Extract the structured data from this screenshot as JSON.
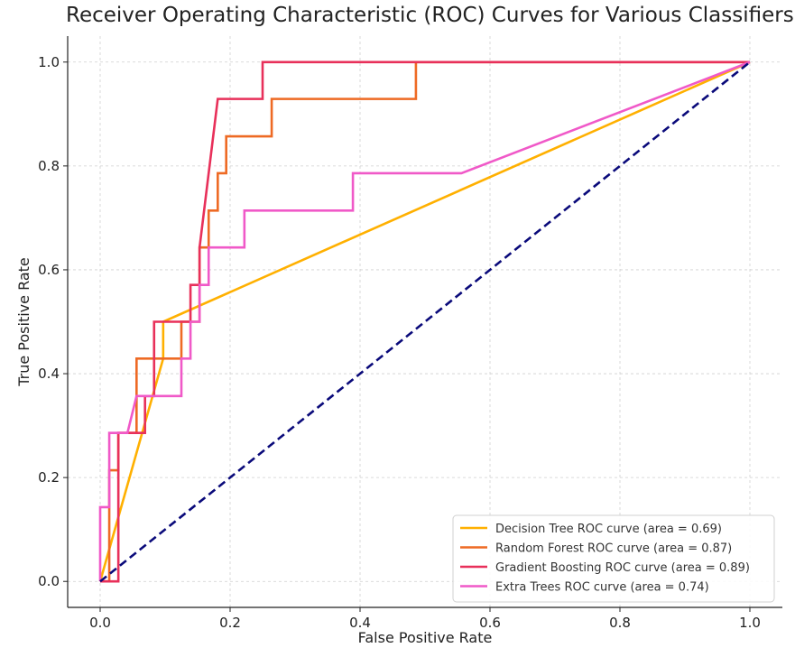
{
  "chart_data": {
    "type": "line",
    "title": "Receiver Operating Characteristic (ROC) Curves for Various Classifiers",
    "xlabel": "False Positive Rate",
    "ylabel": "True Positive Rate",
    "xlim": [
      -0.05,
      1.05
    ],
    "ylim": [
      -0.05,
      1.05
    ],
    "xticks": [
      0.0,
      0.2,
      0.4,
      0.6,
      0.8,
      1.0
    ],
    "yticks": [
      0.0,
      0.2,
      0.4,
      0.6,
      0.8,
      1.0
    ],
    "xtick_labels": [
      "0.0",
      "0.2",
      "0.4",
      "0.6",
      "0.8",
      "1.0"
    ],
    "ytick_labels": [
      "0.0",
      "0.2",
      "0.4",
      "0.6",
      "0.8",
      "1.0"
    ],
    "grid": true,
    "legend_position": "lower-right",
    "series": [
      {
        "name": "Decision Tree ROC curve (area = 0.69)",
        "color": "#FFB000",
        "style": "solid",
        "x": [
          0.0,
          0.097,
          0.097,
          1.0
        ],
        "y": [
          0.0,
          0.429,
          0.5,
          1.0
        ]
      },
      {
        "name": "Random Forest ROC curve (area = 0.87)",
        "color": "#EE6A24",
        "style": "solid",
        "x": [
          0.0,
          0.014,
          0.014,
          0.028,
          0.028,
          0.056,
          0.056,
          0.069,
          0.069,
          0.125,
          0.125,
          0.153,
          0.153,
          0.167,
          0.167,
          0.181,
          0.181,
          0.194,
          0.194,
          0.25,
          0.25,
          0.264,
          0.264,
          0.472,
          0.472,
          0.486,
          0.486,
          1.0
        ],
        "y": [
          0.0,
          0.0,
          0.214,
          0.214,
          0.286,
          0.286,
          0.429,
          0.429,
          0.429,
          0.429,
          0.5,
          0.5,
          0.643,
          0.643,
          0.714,
          0.714,
          0.786,
          0.786,
          0.857,
          0.857,
          0.857,
          0.857,
          0.929,
          0.929,
          0.929,
          0.929,
          1.0,
          1.0
        ]
      },
      {
        "name": "Gradient Boosting ROC curve (area = 0.89)",
        "color": "#E8305A",
        "style": "solid",
        "x": [
          0.0,
          0.028,
          0.028,
          0.069,
          0.069,
          0.083,
          0.083,
          0.139,
          0.139,
          0.153,
          0.153,
          0.181,
          0.181,
          0.25,
          0.25,
          1.0
        ],
        "y": [
          0.0,
          0.0,
          0.286,
          0.286,
          0.357,
          0.357,
          0.5,
          0.5,
          0.571,
          0.571,
          0.643,
          0.929,
          0.929,
          0.929,
          1.0,
          1.0
        ]
      },
      {
        "name": "Extra Trees ROC curve (area = 0.74)",
        "color": "#F059C8",
        "style": "solid",
        "x": [
          0.0,
          0.0,
          0.014,
          0.014,
          0.042,
          0.056,
          0.069,
          0.125,
          0.125,
          0.139,
          0.139,
          0.153,
          0.153,
          0.167,
          0.167,
          0.222,
          0.222,
          0.375,
          0.375,
          0.389,
          0.389,
          0.556,
          1.0
        ],
        "y": [
          0.0,
          0.143,
          0.143,
          0.286,
          0.286,
          0.357,
          0.357,
          0.357,
          0.429,
          0.429,
          0.5,
          0.5,
          0.571,
          0.571,
          0.643,
          0.643,
          0.714,
          0.714,
          0.714,
          0.714,
          0.786,
          0.786,
          1.0
        ]
      },
      {
        "name": "",
        "color": "#0A0A7A",
        "style": "dashed",
        "x": [
          0.0,
          1.0
        ],
        "y": [
          0.0,
          1.0
        ]
      }
    ]
  }
}
